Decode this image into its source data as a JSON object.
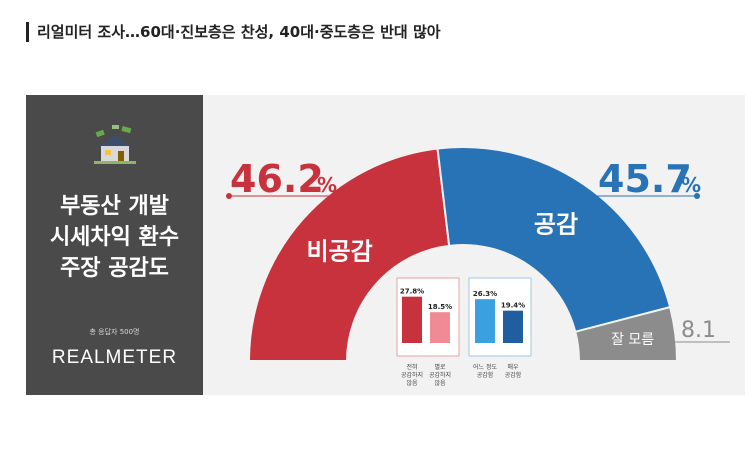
{
  "headline": "리얼미터 조사…60대·진보층은 찬성, 40대·중도층은 반대 많아",
  "panel": {
    "title_lines": [
      "부동산 개발",
      "시세차익 환수",
      "주장 공감도"
    ],
    "sample_note": "총 응답자 500명",
    "logo": "REALMETER"
  },
  "chart_data": {
    "type": "pie",
    "title": "부동산 개발 시세차익 환수 주장 공감도",
    "slices": [
      {
        "label": "비공감",
        "value": 46.2,
        "value_label": "46.2",
        "unit": "%",
        "color": "#c8323c"
      },
      {
        "label": "공감",
        "value": 45.7,
        "value_label": "45.7",
        "unit": "%",
        "color": "#2872b6"
      },
      {
        "label": "잘 모름",
        "value": 8.1,
        "value_label": "8.1",
        "unit": "",
        "color": "#8c8c8c"
      }
    ],
    "sub_bars": [
      {
        "group": "비공감",
        "label_lines": [
          "전혀",
          "공감하지",
          "않음"
        ],
        "value": 27.8,
        "value_label": "27.8%",
        "color": "#c8323c"
      },
      {
        "group": "비공감",
        "label_lines": [
          "별로",
          "공감하지",
          "않음"
        ],
        "value": 18.5,
        "value_label": "18.5%",
        "color": "#f08b95"
      },
      {
        "group": "공감",
        "label_lines": [
          "어느 정도",
          "공감함"
        ],
        "value": 26.3,
        "value_label": "26.3%",
        "color": "#3aa0e0"
      },
      {
        "group": "공감",
        "label_lines": [
          "매우",
          "공감함"
        ],
        "value": 19.4,
        "value_label": "19.4%",
        "color": "#1f5fa0"
      }
    ]
  }
}
